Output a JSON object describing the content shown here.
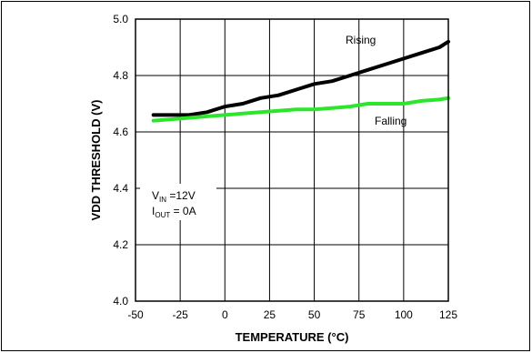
{
  "chart_data": {
    "type": "line",
    "xlabel": "TEMPERATURE (°C)",
    "ylabel": "VDD THRESHOLD (V)",
    "xlim": [
      -50,
      125
    ],
    "ylim": [
      4.0,
      5.0
    ],
    "x_ticks": [
      -50,
      -25,
      0,
      25,
      50,
      75,
      100,
      125
    ],
    "y_ticks": [
      4.0,
      4.2,
      4.4,
      4.6,
      4.8,
      5.0
    ],
    "x_tick_labels": [
      "-50",
      "-25",
      "0",
      "25",
      "50",
      "75",
      "100",
      "125"
    ],
    "y_tick_labels": [
      "4.0",
      "4.2",
      "4.4",
      "4.6",
      "4.8",
      "5.0"
    ],
    "grid": true,
    "series": [
      {
        "name": "Rising",
        "color": "#000000",
        "x": [
          -40,
          -30,
          -20,
          -10,
          0,
          10,
          20,
          30,
          40,
          50,
          60,
          70,
          80,
          90,
          100,
          110,
          120,
          125
        ],
        "y": [
          4.66,
          4.66,
          4.66,
          4.67,
          4.69,
          4.7,
          4.72,
          4.73,
          4.75,
          4.77,
          4.78,
          4.8,
          4.82,
          4.84,
          4.86,
          4.88,
          4.9,
          4.92
        ]
      },
      {
        "name": "Falling",
        "color": "#2be62b",
        "x": [
          -40,
          -30,
          -20,
          -10,
          0,
          10,
          20,
          30,
          40,
          50,
          60,
          70,
          80,
          90,
          100,
          110,
          120,
          125
        ],
        "y": [
          4.64,
          4.645,
          4.65,
          4.655,
          4.66,
          4.665,
          4.67,
          4.675,
          4.68,
          4.68,
          4.685,
          4.69,
          4.7,
          4.7,
          4.7,
          4.71,
          4.715,
          4.72
        ]
      }
    ],
    "annotation": {
      "vin_main": "V",
      "vin_sub": "IN",
      "vin_value": " =12V",
      "iout_main": "I",
      "iout_sub": "OUT",
      "iout_value": " = 0A"
    }
  }
}
